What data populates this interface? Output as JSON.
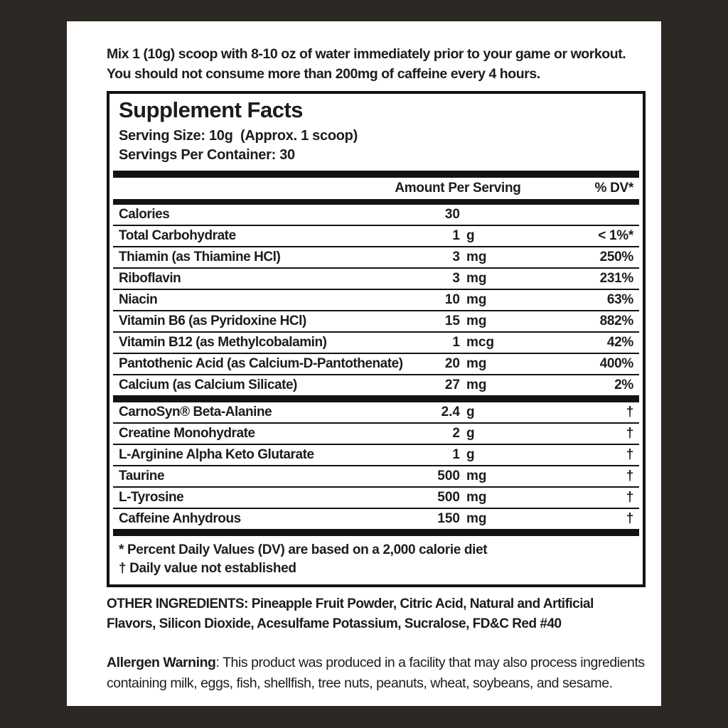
{
  "colors": {
    "background": "#2c2824",
    "card": "#ffffff",
    "text": "#1d1c1a",
    "rule": "#141311"
  },
  "directions": "Mix 1 (10g) scoop with 8-10 oz of water immediately prior to your game or workout. You should not consume more than 200mg of caffeine every 4 hours.",
  "supplement_facts": {
    "title": "Supplement Facts",
    "serving_size_label": "Serving Size: 10g  (Approx. 1 scoop)",
    "servings_per_container_label": "Servings Per Container: 30",
    "column_headers": {
      "amount": "Amount Per Serving",
      "dv": "% DV*"
    },
    "rows": [
      {
        "name": "Calories",
        "amount_num": "30",
        "amount_unit": "",
        "dv": ""
      },
      {
        "name": "Total Carbohydrate",
        "amount_num": "1",
        "amount_unit": "g",
        "dv": "< 1%*"
      },
      {
        "name": "Thiamin (as Thiamine HCl)",
        "amount_num": "3",
        "amount_unit": "mg",
        "dv": "250%"
      },
      {
        "name": "Riboflavin",
        "amount_num": "3",
        "amount_unit": "mg",
        "dv": "231%"
      },
      {
        "name": "Niacin",
        "amount_num": "10",
        "amount_unit": "mg",
        "dv": "63%"
      },
      {
        "name": "Vitamin B6 (as Pyridoxine HCl)",
        "amount_num": "15",
        "amount_unit": "mg",
        "dv": "882%"
      },
      {
        "name": "Vitamin B12 (as Methylcobalamin)",
        "amount_num": "1",
        "amount_unit": "mcg",
        "dv": "42%"
      },
      {
        "name": "Pantothenic Acid (as Calcium-D-Pantothenate)",
        "amount_num": "20",
        "amount_unit": "mg",
        "dv": "400%"
      },
      {
        "name": "Calcium (as Calcium Silicate)",
        "amount_num": "27",
        "amount_unit": "mg",
        "dv": "2%"
      }
    ],
    "rows2": [
      {
        "name": "CarnoSyn® Beta-Alanine",
        "amount_num": "2.4",
        "amount_unit": "g",
        "dv": "†"
      },
      {
        "name": "Creatine Monohydrate",
        "amount_num": "2",
        "amount_unit": "g",
        "dv": "†"
      },
      {
        "name": "L-Arginine Alpha Keto Glutarate",
        "amount_num": "1",
        "amount_unit": "g",
        "dv": "†"
      },
      {
        "name": "Taurine",
        "amount_num": "500",
        "amount_unit": "mg",
        "dv": "†"
      },
      {
        "name": "L-Tyrosine",
        "amount_num": "500",
        "amount_unit": "mg",
        "dv": "†"
      },
      {
        "name": "Caffeine Anhydrous",
        "amount_num": "150",
        "amount_unit": "mg",
        "dv": "†"
      }
    ],
    "footnote_dv": "* Percent Daily Values (DV) are based on a 2,000 calorie diet",
    "footnote_dagger": "† Daily value not established"
  },
  "other_ingredients": "OTHER INGREDIENTS: Pineapple Fruit Powder, Citric Acid, Natural and Artificial Flavors, Silicon Dioxide, Acesulfame Potassium, Sucralose, FD&C Red #40",
  "allergen": {
    "label": "Allergen Warning",
    "text": ": This product was produced in a facility that may also process ingredients containing milk, eggs, fish, shellfish, tree nuts, peanuts, wheat, soybeans, and sesame."
  }
}
